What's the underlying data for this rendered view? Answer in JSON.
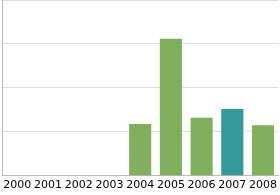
{
  "chart_data": {
    "type": "bar",
    "categories": [
      "2000",
      "2001",
      "2002",
      "2003",
      "2004",
      "2005",
      "2006",
      "2007",
      "2008"
    ],
    "values": [
      null,
      null,
      null,
      null,
      1.18,
      3.12,
      1.32,
      1.52,
      1.15
    ],
    "colors": [
      "#80b05c",
      "#80b05c",
      "#80b05c",
      "#80b05c",
      "#80b05c",
      "#80b05c",
      "#80b05c",
      "#339999",
      "#80b05c"
    ],
    "ylim": [
      0,
      4
    ],
    "yticks": [
      0,
      1,
      2,
      3,
      4
    ],
    "grid": true,
    "tick_labels": "x"
  }
}
